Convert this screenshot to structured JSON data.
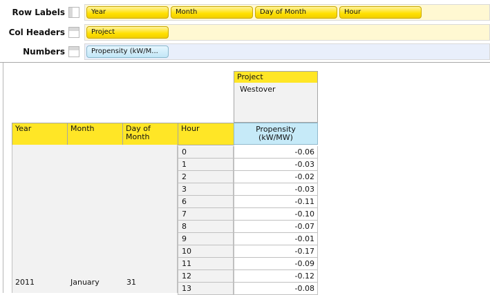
{
  "config": {
    "rows": {
      "label": "Row Labels",
      "chips": [
        "Year",
        "Month",
        "Day of Month",
        "Hour"
      ]
    },
    "cols": {
      "label": "Col Headers",
      "chips": [
        "Project"
      ]
    },
    "numbers": {
      "label": "Numbers",
      "chips": [
        "Propensity (kW/M..."
      ]
    }
  },
  "table": {
    "col_header_title": "Project",
    "col_header_value": "Westover",
    "row_headers": [
      "Year",
      "Month",
      "Day of\nMonth",
      "Hour"
    ],
    "measure_header": "Propensity\n(kW/MW)",
    "year": "2011",
    "month": "January",
    "day": "31",
    "rows": [
      {
        "hour": "0",
        "value": "-0.06"
      },
      {
        "hour": "1",
        "value": "-0.03"
      },
      {
        "hour": "2",
        "value": "-0.02"
      },
      {
        "hour": "3",
        "value": "-0.03"
      },
      {
        "hour": "6",
        "value": "-0.11"
      },
      {
        "hour": "7",
        "value": "-0.10"
      },
      {
        "hour": "8",
        "value": "-0.07"
      },
      {
        "hour": "9",
        "value": "-0.01"
      },
      {
        "hour": "10",
        "value": "-0.17"
      },
      {
        "hour": "11",
        "value": "-0.09"
      },
      {
        "hour": "12",
        "value": "-0.12"
      },
      {
        "hour": "13",
        "value": "-0.08"
      }
    ]
  },
  "colors": {
    "header_yellow": "#ffe626",
    "measure_blue": "#c6eaf8",
    "well_yellow": "#fff8d2",
    "well_blue": "#e9effb"
  }
}
